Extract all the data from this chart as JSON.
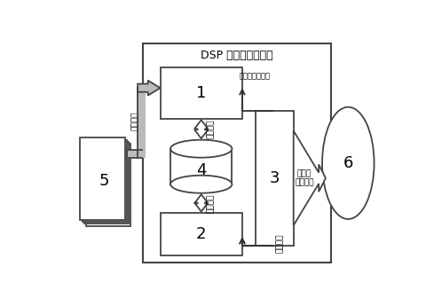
{
  "title": "DSP 数字信号处理器",
  "label_syncsig": "同步、比较信号",
  "label_shared_top": "共享数据",
  "label_shared_bot": "共享数据",
  "label_cmd": "命令程序",
  "label_multichan": "多通道\n脉冲输出",
  "label_interrupt": "中断请求",
  "bg_color": "#ffffff",
  "box_edge": "#444444",
  "arrow_gray": "#888888",
  "arrow_dark": "#333333"
}
